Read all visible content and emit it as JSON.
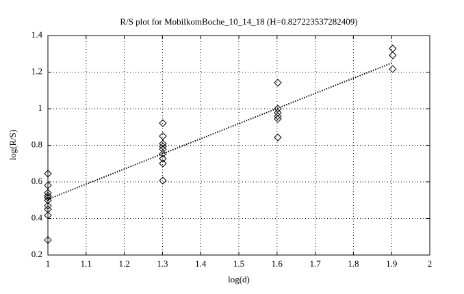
{
  "chart_data": {
    "type": "scatter",
    "title": "R/S plot for MobilkomBoche_10_14_18 (H=0.827223537282409)",
    "x_label": "log(d)",
    "y_label": "log(R/S)",
    "points": {
      "color": "#000000",
      "x": [
        1,
        1,
        1,
        1,
        1,
        1,
        1,
        1,
        1,
        1,
        1.301,
        1.301,
        1.301,
        1.301,
        1.301,
        1.301,
        1.301,
        1.301,
        1.301,
        1.602,
        1.602,
        1.602,
        1.602,
        1.602,
        1.602,
        1.903,
        1.903,
        1.903
      ],
      "y": [
        0.645,
        0.581,
        0.54,
        0.525,
        0.514,
        0.499,
        0.469,
        0.45,
        0.417,
        0.282,
        0.921,
        0.85,
        0.809,
        0.794,
        0.779,
        0.753,
        0.727,
        0.701,
        0.607,
        1.142,
        1.0,
        0.978,
        0.959,
        0.944,
        0.843,
        1.329,
        1.292,
        1.217
      ]
    },
    "fit": {
      "color": "#000000",
      "x": [
        1,
        1.903
      ],
      "y": [
        0.505,
        1.252
      ]
    },
    "xlim": [
      1,
      2
    ],
    "xticks": [
      1,
      1.1,
      1.2,
      1.3,
      1.4,
      1.5,
      1.6,
      1.7,
      1.8,
      1.9,
      2
    ],
    "ylim": [
      0.2,
      1.4
    ],
    "yticks": [
      0.2,
      0.4,
      0.6,
      0.8,
      1,
      1.2,
      1.4
    ],
    "grid": true
  }
}
